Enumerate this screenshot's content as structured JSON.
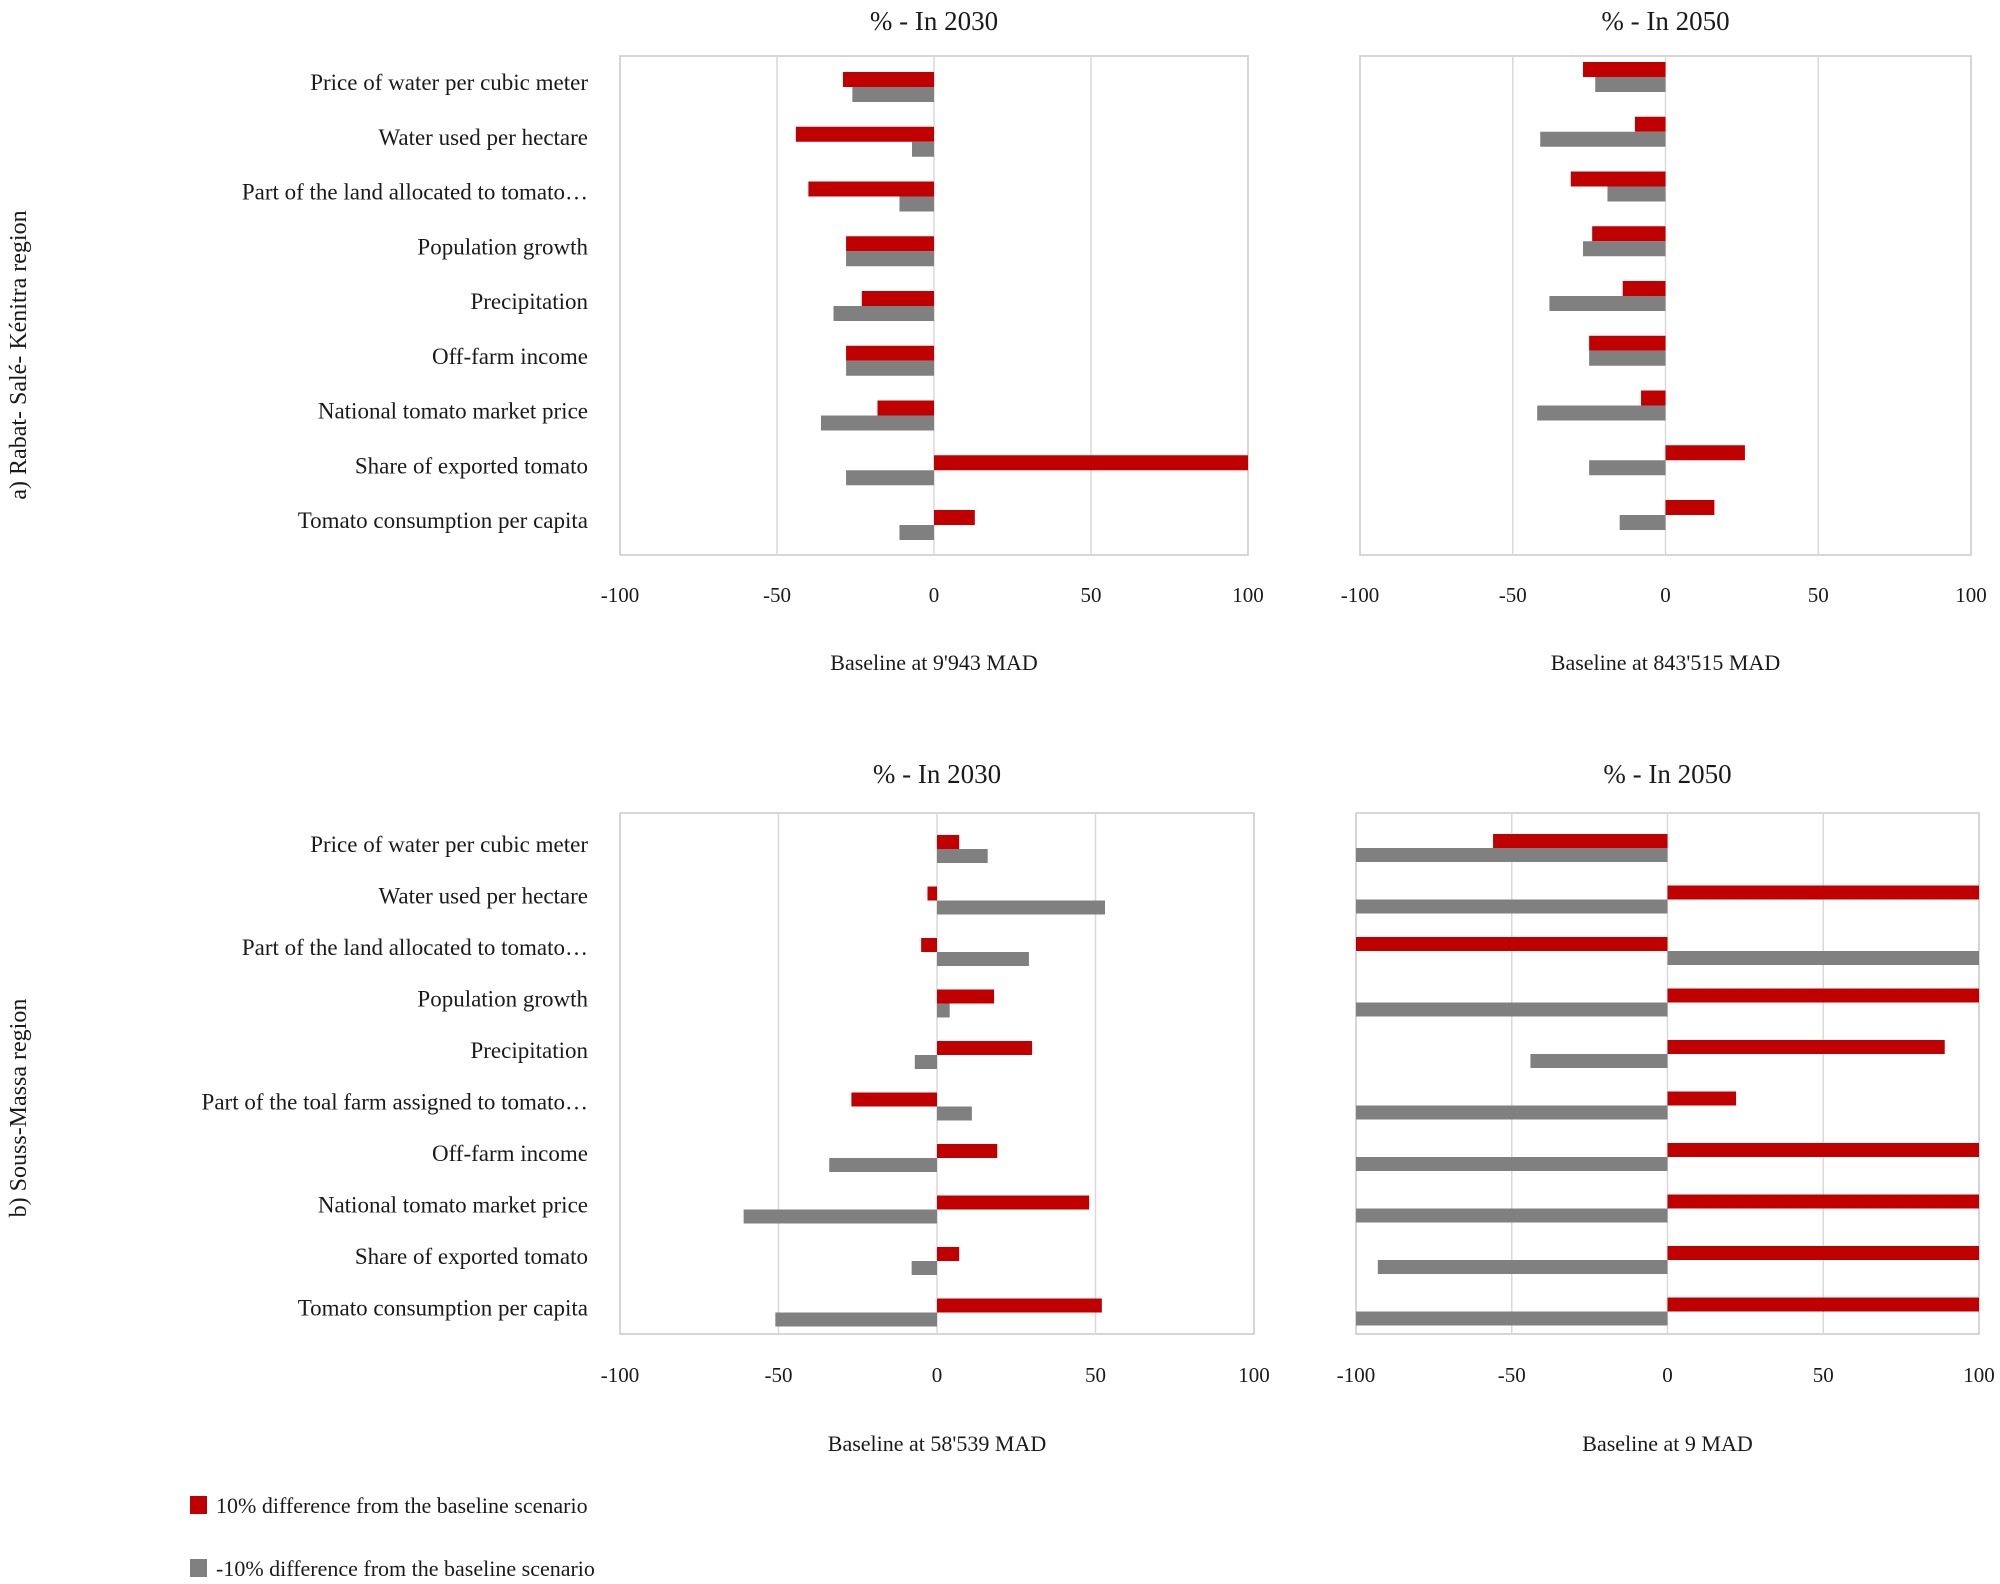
{
  "regions": [
    "a) Rabat- Salé- Kénitra region",
    "b) Souss-Massa region"
  ],
  "legend": [
    {
      "label": "10% difference from the baseline scenario",
      "color": "#c00000"
    },
    {
      "label": "-10% difference from the baseline scenario",
      "color": "#808080"
    }
  ],
  "chart_data": [
    {
      "type": "bar",
      "orientation": "horizontal",
      "title": "% - In 2030",
      "xlabel": "Baseline at 9'943 MAD",
      "xlim": [
        -100,
        100
      ],
      "xticks": [
        -100,
        -50,
        0,
        50,
        100
      ],
      "categories": [
        "Price of water per cubic meter",
        "Water used per hectare",
        "Part of the land allocated to tomato…",
        "Population growth",
        "Precipitation",
        "Off-farm income",
        "National tomato market price",
        "Share of exported tomato",
        "Tomato consumption per capita"
      ],
      "series": [
        {
          "name": "10% difference from the baseline scenario",
          "values": [
            -29,
            -44,
            -40,
            -28,
            -23,
            -28,
            -18,
            100,
            13
          ]
        },
        {
          "name": "-10% difference from the baseline scenario",
          "values": [
            -26,
            -7,
            -11,
            -28,
            -32,
            -28,
            -36,
            -28,
            -11
          ]
        }
      ]
    },
    {
      "type": "bar",
      "orientation": "horizontal",
      "title": "% - In 2050",
      "xlabel": "Baseline at 843'515 MAD",
      "xlim": [
        -100,
        100
      ],
      "xticks": [
        -100,
        -50,
        0,
        50,
        100
      ],
      "categories": [
        "Price of water per cubic meter",
        "Water used per hectare",
        "Part of the land allocated to tomato…",
        "Population growth",
        "Precipitation",
        "Off-farm income",
        "National tomato market price",
        "Share of exported tomato",
        "Tomato consumption per capita"
      ],
      "series": [
        {
          "name": "10% difference from the baseline scenario",
          "values": [
            -27,
            -10,
            -31,
            -24,
            -14,
            -25,
            -8,
            26,
            16
          ]
        },
        {
          "name": "-10% difference from the baseline scenario",
          "values": [
            -23,
            -41,
            -19,
            -27,
            -38,
            -25,
            -42,
            -25,
            -15
          ]
        }
      ]
    },
    {
      "type": "bar",
      "orientation": "horizontal",
      "title": "% - In 2030",
      "xlabel": "Baseline at 58'539 MAD",
      "xlim": [
        -100,
        100
      ],
      "xticks": [
        -100,
        -50,
        0,
        50,
        100
      ],
      "categories": [
        "Price of water per cubic meter",
        "Water used per hectare",
        "Part of the land allocated to tomato…",
        "Population growth",
        "Precipitation",
        "Part of the toal farm assigned to tomato…",
        "Off-farm income",
        "National tomato market price",
        "Share of exported tomato",
        "Tomato consumption per capita"
      ],
      "series": [
        {
          "name": "10% difference from the baseline scenario",
          "values": [
            7,
            -3,
            -5,
            18,
            30,
            -27,
            19,
            48,
            7,
            52
          ]
        },
        {
          "name": "-10% difference from the baseline scenario",
          "values": [
            16,
            53,
            29,
            4,
            -7,
            11,
            -34,
            -61,
            -8,
            -51
          ]
        }
      ]
    },
    {
      "type": "bar",
      "orientation": "horizontal",
      "title": "% - In 2050",
      "xlabel": "Baseline at 9 MAD",
      "xlim": [
        -100,
        100
      ],
      "xticks": [
        -100,
        -50,
        0,
        50,
        100
      ],
      "categories": [
        "Price of water per cubic meter",
        "Water used per hectare",
        "Part of the land allocated to tomato…",
        "Population growth",
        "Precipitation",
        "Part of the toal farm assigned to tomato…",
        "Off-farm income",
        "National tomato market price",
        "Share of exported tomato",
        "Tomato consumption per capita"
      ],
      "series": [
        {
          "name": "10% difference from the baseline scenario",
          "values": [
            -56,
            100,
            -100,
            100,
            89,
            22,
            100,
            100,
            100,
            100
          ]
        },
        {
          "name": "-10% difference from the baseline scenario",
          "values": [
            -100,
            -100,
            100,
            -100,
            -44,
            -100,
            -100,
            -100,
            -93,
            -100
          ]
        }
      ]
    }
  ]
}
